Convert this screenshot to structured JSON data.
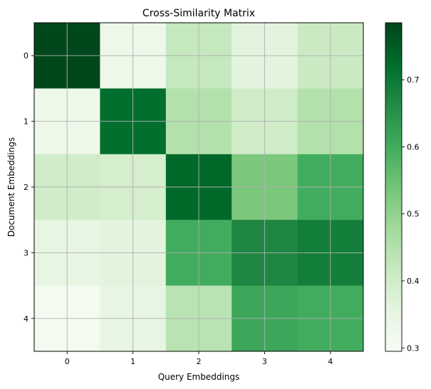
{
  "chart_data": {
    "type": "heatmap",
    "title": "Cross-Similarity Matrix",
    "xlabel": "Query Embeddings",
    "ylabel": "Document Embeddings",
    "x_categories": [
      "0",
      "1",
      "2",
      "3",
      "4"
    ],
    "y_categories": [
      "0",
      "1",
      "2",
      "3",
      "4"
    ],
    "values": [
      [
        0.78,
        0.33,
        0.42,
        0.36,
        0.41
      ],
      [
        0.33,
        0.72,
        0.45,
        0.4,
        0.45
      ],
      [
        0.4,
        0.39,
        0.73,
        0.53,
        0.6
      ],
      [
        0.35,
        0.36,
        0.6,
        0.67,
        0.69
      ],
      [
        0.31,
        0.35,
        0.44,
        0.61,
        0.6
      ]
    ],
    "colormap": "Greens",
    "color_min": 0.295,
    "color_max": 0.785,
    "colorbar_ticks": [
      "0.3",
      "0.4",
      "0.5",
      "0.6",
      "0.7"
    ],
    "grid": true,
    "colors": {
      "grid": "#b0b0b0",
      "axis": "#000000"
    }
  }
}
